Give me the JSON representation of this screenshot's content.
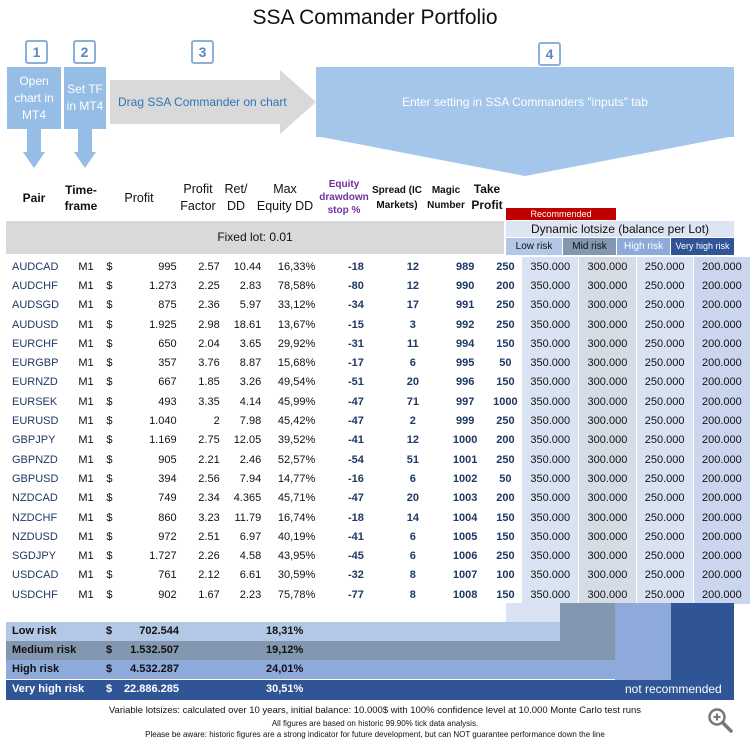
{
  "title": "SSA Commander Portfolio",
  "steps": [
    {
      "num": "1",
      "text": "Open chart in MT4"
    },
    {
      "num": "2",
      "text": "Set TF in MT4"
    },
    {
      "num": "3",
      "text": "Drag SSA Commander on chart"
    },
    {
      "num": "4",
      "text": "Enter setting in SSA Commanders \"inputs\" tab"
    }
  ],
  "headers": {
    "pair": "Pair",
    "timeframe_l1": "Time-",
    "timeframe_l2": "frame",
    "profit": "Profit",
    "pf_l1": "Profit",
    "pf_l2": "Factor",
    "retdd_l1": "Ret/",
    "retdd_l2": "DD",
    "maxdd_l1": "Max",
    "maxdd_l2": "Equity DD",
    "stop_l1": "Equity",
    "stop_l2": "drawdown",
    "stop_l3": "stop %",
    "spread_l1": "Spread (IC",
    "spread_l2": "Markets)",
    "magic_l1": "Magic",
    "magic_l2": "Number",
    "tp_l1": "Take",
    "tp_l2": "Profit"
  },
  "recommended_label": "Recommended",
  "fixed_lot": "Fixed lot: 0.01",
  "dynamic_label": "Dynamic lotsize (balance per Lot)",
  "risk_levels": [
    "Low risk",
    "Mid risk",
    "High risk",
    "Very high risk"
  ],
  "colors": {
    "low": "#b3c7e6",
    "mid": "#8497b0",
    "high": "#8eaadb",
    "very_high": "#2f5597",
    "step_fill": "#95bde5",
    "recommended": "#c00000"
  },
  "rows": [
    {
      "pair": "AUDCAD",
      "tf": "M1",
      "cur": "$",
      "profit": "995",
      "pf": "2.57",
      "retdd": "10.44",
      "maxdd": "16,33%",
      "stop": "-18",
      "spread": "12",
      "magic": "989",
      "tp": "250",
      "low": "350.000",
      "mid": "300.000",
      "high": "250.000",
      "vhigh": "200.000"
    },
    {
      "pair": "AUDCHF",
      "tf": "M1",
      "cur": "$",
      "profit": "1.273",
      "pf": "2.25",
      "retdd": "2.83",
      "maxdd": "78,58%",
      "stop": "-80",
      "spread": "12",
      "magic": "990",
      "tp": "200",
      "low": "350.000",
      "mid": "300.000",
      "high": "250.000",
      "vhigh": "200.000"
    },
    {
      "pair": "AUDSGD",
      "tf": "M1",
      "cur": "$",
      "profit": "875",
      "pf": "2.36",
      "retdd": "5.97",
      "maxdd": "33,12%",
      "stop": "-34",
      "spread": "17",
      "magic": "991",
      "tp": "250",
      "low": "350.000",
      "mid": "300.000",
      "high": "250.000",
      "vhigh": "200.000"
    },
    {
      "pair": "AUDUSD",
      "tf": "M1",
      "cur": "$",
      "profit": "1.925",
      "pf": "2.98",
      "retdd": "18.61",
      "maxdd": "13,67%",
      "stop": "-15",
      "spread": "3",
      "magic": "992",
      "tp": "250",
      "low": "350.000",
      "mid": "300.000",
      "high": "250.000",
      "vhigh": "200.000"
    },
    {
      "pair": "EURCHF",
      "tf": "M1",
      "cur": "$",
      "profit": "650",
      "pf": "2.04",
      "retdd": "3.65",
      "maxdd": "29,92%",
      "stop": "-31",
      "spread": "11",
      "magic": "994",
      "tp": "150",
      "low": "350.000",
      "mid": "300.000",
      "high": "250.000",
      "vhigh": "200.000"
    },
    {
      "pair": "EURGBP",
      "tf": "M1",
      "cur": "$",
      "profit": "357",
      "pf": "3.76",
      "retdd": "8.87",
      "maxdd": "15,68%",
      "stop": "-17",
      "spread": "6",
      "magic": "995",
      "tp": "50",
      "low": "350.000",
      "mid": "300.000",
      "high": "250.000",
      "vhigh": "200.000"
    },
    {
      "pair": "EURNZD",
      "tf": "M1",
      "cur": "$",
      "profit": "667",
      "pf": "1.85",
      "retdd": "3.26",
      "maxdd": "49,54%",
      "stop": "-51",
      "spread": "20",
      "magic": "996",
      "tp": "150",
      "low": "350.000",
      "mid": "300.000",
      "high": "250.000",
      "vhigh": "200.000"
    },
    {
      "pair": "EURSEK",
      "tf": "M1",
      "cur": "$",
      "profit": "493",
      "pf": "3.35",
      "retdd": "4.14",
      "maxdd": "45,99%",
      "stop": "-47",
      "spread": "71",
      "magic": "997",
      "tp": "1000",
      "low": "350.000",
      "mid": "300.000",
      "high": "250.000",
      "vhigh": "200.000"
    },
    {
      "pair": "EURUSD",
      "tf": "M1",
      "cur": "$",
      "profit": "1.040",
      "pf": "2",
      "retdd": "7.98",
      "maxdd": "45,42%",
      "stop": "-47",
      "spread": "2",
      "magic": "999",
      "tp": "250",
      "low": "350.000",
      "mid": "300.000",
      "high": "250.000",
      "vhigh": "200.000"
    },
    {
      "pair": "GBPJPY",
      "tf": "M1",
      "cur": "$",
      "profit": "1.169",
      "pf": "2.75",
      "retdd": "12.05",
      "maxdd": "39,52%",
      "stop": "-41",
      "spread": "12",
      "magic": "1000",
      "tp": "200",
      "low": "350.000",
      "mid": "300.000",
      "high": "250.000",
      "vhigh": "200.000"
    },
    {
      "pair": "GBPNZD",
      "tf": "M1",
      "cur": "$",
      "profit": "905",
      "pf": "2.21",
      "retdd": "2.46",
      "maxdd": "52,57%",
      "stop": "-54",
      "spread": "51",
      "magic": "1001",
      "tp": "250",
      "low": "350.000",
      "mid": "300.000",
      "high": "250.000",
      "vhigh": "200.000"
    },
    {
      "pair": "GBPUSD",
      "tf": "M1",
      "cur": "$",
      "profit": "394",
      "pf": "2.56",
      "retdd": "7.94",
      "maxdd": "14,77%",
      "stop": "-16",
      "spread": "6",
      "magic": "1002",
      "tp": "50",
      "low": "350.000",
      "mid": "300.000",
      "high": "250.000",
      "vhigh": "200.000"
    },
    {
      "pair": "NZDCAD",
      "tf": "M1",
      "cur": "$",
      "profit": "749",
      "pf": "2.34",
      "retdd": "4.365",
      "maxdd": "45,71%",
      "stop": "-47",
      "spread": "20",
      "magic": "1003",
      "tp": "200",
      "low": "350.000",
      "mid": "300.000",
      "high": "250.000",
      "vhigh": "200.000"
    },
    {
      "pair": "NZDCHF",
      "tf": "M1",
      "cur": "$",
      "profit": "860",
      "pf": "3.23",
      "retdd": "11.79",
      "maxdd": "16,74%",
      "stop": "-18",
      "spread": "14",
      "magic": "1004",
      "tp": "150",
      "low": "350.000",
      "mid": "300.000",
      "high": "250.000",
      "vhigh": "200.000"
    },
    {
      "pair": "NZDUSD",
      "tf": "M1",
      "cur": "$",
      "profit": "972",
      "pf": "2.51",
      "retdd": "6.97",
      "maxdd": "40,19%",
      "stop": "-41",
      "spread": "6",
      "magic": "1005",
      "tp": "150",
      "low": "350.000",
      "mid": "300.000",
      "high": "250.000",
      "vhigh": "200.000"
    },
    {
      "pair": "SGDJPY",
      "tf": "M1",
      "cur": "$",
      "profit": "1.727",
      "pf": "2.26",
      "retdd": "4.58",
      "maxdd": "43,95%",
      "stop": "-45",
      "spread": "6",
      "magic": "1006",
      "tp": "250",
      "low": "350.000",
      "mid": "300.000",
      "high": "250.000",
      "vhigh": "200.000"
    },
    {
      "pair": "USDCAD",
      "tf": "M1",
      "cur": "$",
      "profit": "761",
      "pf": "2.12",
      "retdd": "6.61",
      "maxdd": "30,59%",
      "stop": "-32",
      "spread": "8",
      "magic": "1007",
      "tp": "100",
      "low": "350.000",
      "mid": "300.000",
      "high": "250.000",
      "vhigh": "200.000"
    },
    {
      "pair": "USDCHF",
      "tf": "M1",
      "cur": "$",
      "profit": "902",
      "pf": "1.67",
      "retdd": "2.23",
      "maxdd": "75,78%",
      "stop": "-77",
      "spread": "8",
      "magic": "1008",
      "tp": "150",
      "low": "350.000",
      "mid": "300.000",
      "high": "250.000",
      "vhigh": "200.000"
    }
  ],
  "summary": [
    {
      "label": "Low risk",
      "cur": "$",
      "amount": "702.544",
      "pct": "18,31%"
    },
    {
      "label": "Medium risk",
      "cur": "$",
      "amount": "1.532.507",
      "pct": "19,12%"
    },
    {
      "label": "High risk",
      "cur": "$",
      "amount": "4.532.287",
      "pct": "24,01%"
    },
    {
      "label": "Very high risk",
      "cur": "$",
      "amount": "22.886.285",
      "pct": "30,51%"
    }
  ],
  "not_recommended": "not recommended",
  "notes": [
    "Variable lotsizes: calculated over 10 years, initial balance: 10.000$ with 100% confidence level at 10.000 Monte Carlo test runs",
    "All figures are based on historic 99.90% tick data analysis.",
    "Please be aware: historic figures are a strong indicator for future development, but can NOT guarantee performance down the line"
  ],
  "zoom_icon": "zoom-in-icon"
}
